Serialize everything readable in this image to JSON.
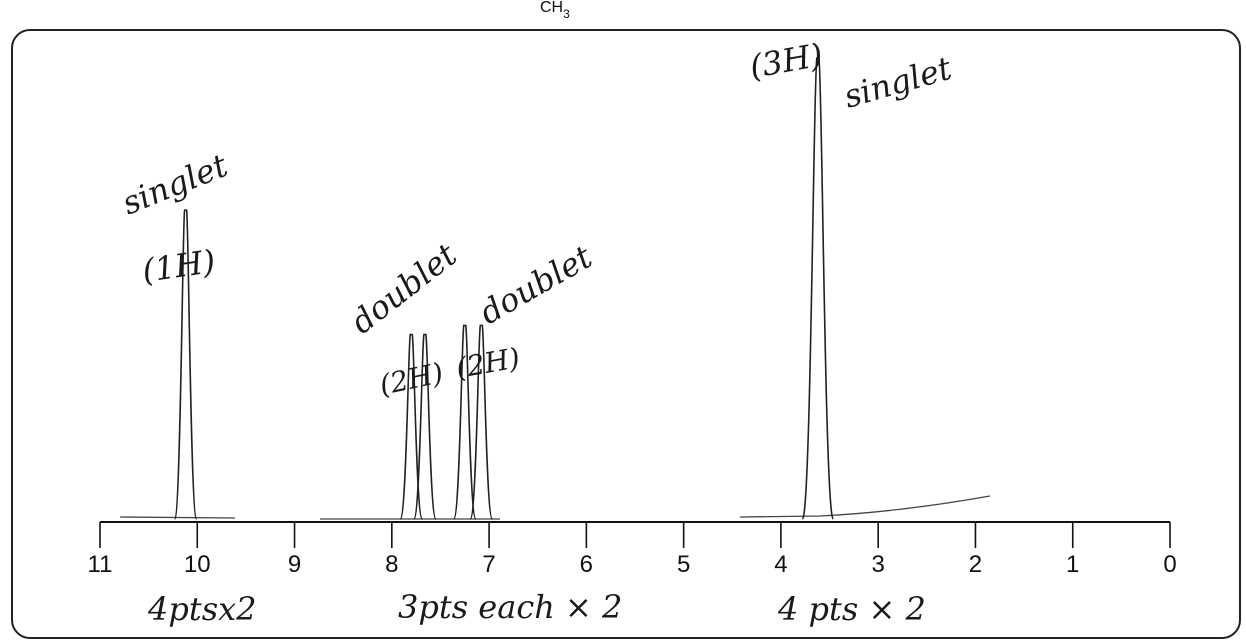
{
  "top_text": {
    "main": "CH",
    "sub": "3"
  },
  "chart_data": {
    "type": "line",
    "title": "",
    "xlabel": "",
    "ylabel": "",
    "x_axis": {
      "min": 0,
      "max": 11,
      "reversed": true,
      "ticks": [
        "11",
        "10",
        "9",
        "8",
        "7",
        "6",
        "5",
        "4",
        "3",
        "2",
        "1",
        "0"
      ]
    },
    "grid": false,
    "series": [
      {
        "peaks": [
          {
            "ppm": 10.12,
            "height": 0.67
          },
          {
            "ppm": 7.8,
            "height": 0.4
          },
          {
            "ppm": 7.66,
            "height": 0.4
          },
          {
            "ppm": 7.25,
            "height": 0.42
          },
          {
            "ppm": 7.08,
            "height": 0.42
          },
          {
            "ppm": 3.62,
            "height": 1.0
          }
        ]
      }
    ],
    "annotations": [
      {
        "id": "singlet-1",
        "text": "singlet"
      },
      {
        "id": "h1",
        "text": "(1H)"
      },
      {
        "id": "doublet-1",
        "text": "doublet"
      },
      {
        "id": "h2a",
        "text": "(2H)"
      },
      {
        "id": "doublet-2",
        "text": "doublet"
      },
      {
        "id": "h2b",
        "text": "(2H)"
      },
      {
        "id": "h3",
        "text": "(3H)"
      },
      {
        "id": "singlet-2",
        "text": "singlet"
      },
      {
        "id": "score-1",
        "text": "4ptsx2"
      },
      {
        "id": "score-2",
        "text": "3pts each × 2"
      },
      {
        "id": "score-3",
        "text": "4 pts × 2"
      }
    ]
  }
}
